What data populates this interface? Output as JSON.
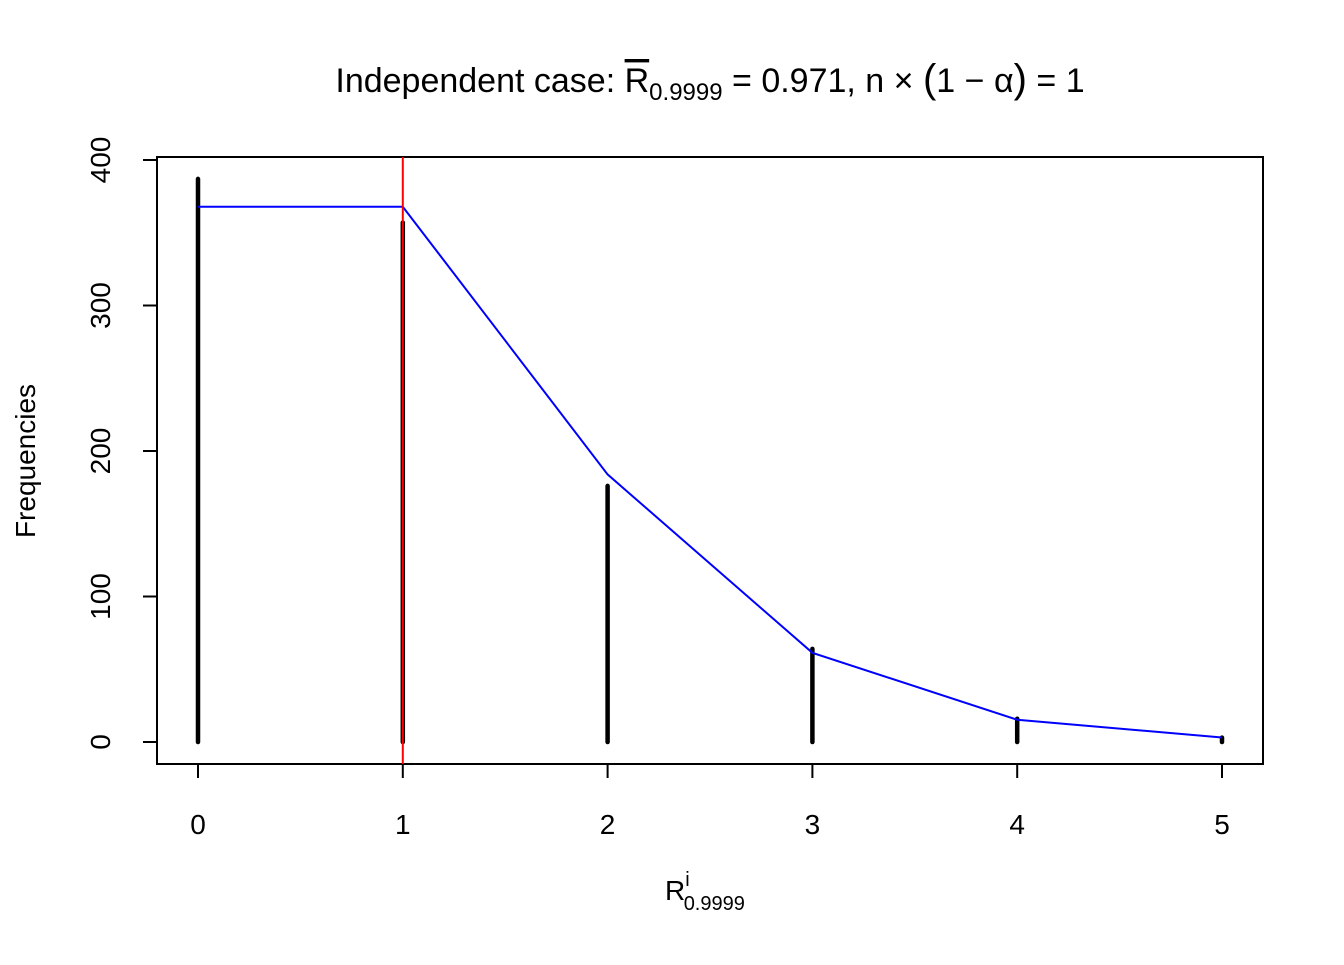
{
  "chart_data": {
    "type": "bar",
    "title": {
      "prefix": "Independent case: ",
      "rbar": "R",
      "rbar_sub": "0.9999",
      "middle": " = 0.971, n × ",
      "paren_open": "(",
      "paren_body": "1 − α",
      "paren_close": ")",
      "suffix": " = 1"
    },
    "xlabel": {
      "main": "R",
      "sup": "i",
      "sub": "0.9999"
    },
    "ylabel": "Frequencies",
    "xlim": [
      -0.2,
      5.2
    ],
    "ylim": [
      -15,
      405
    ],
    "x_ticks": [
      "0",
      "1",
      "2",
      "3",
      "4",
      "5"
    ],
    "y_ticks": [
      "0",
      "100",
      "200",
      "300",
      "400"
    ],
    "grid": false,
    "categories": [
      0,
      1,
      2,
      3,
      4,
      5
    ],
    "series": [
      {
        "type": "bar",
        "values": [
          387,
          357,
          176,
          64,
          16,
          3
        ],
        "color": "#000000"
      },
      {
        "type": "line",
        "values": [
          367.9,
          367.9,
          183.9,
          61.3,
          15.3,
          3.1
        ],
        "color": "#0000ff"
      }
    ],
    "vline": {
      "x": 1,
      "color": "#ff0000"
    }
  }
}
